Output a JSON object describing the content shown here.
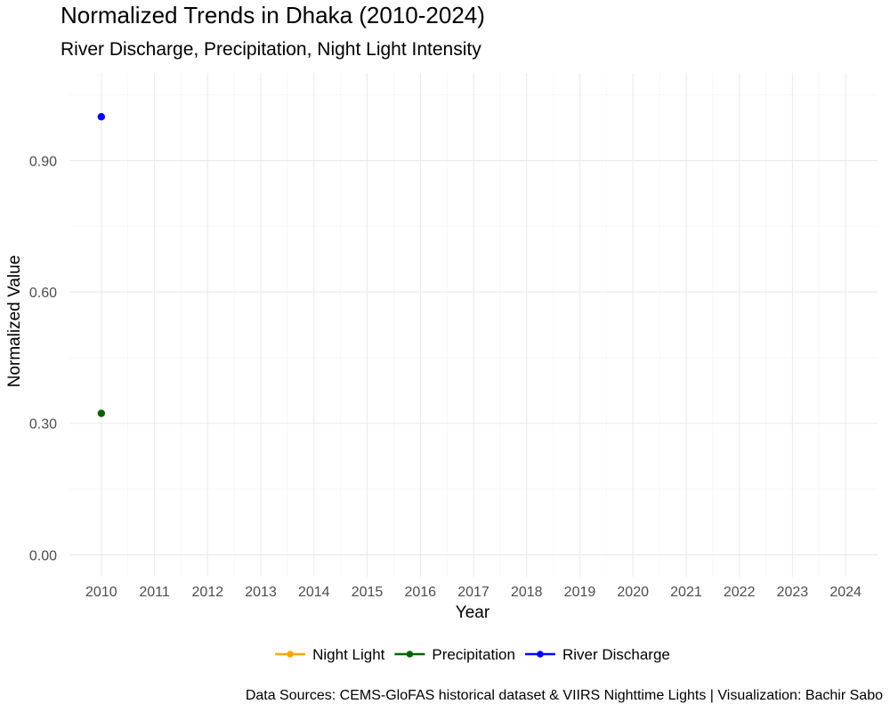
{
  "chart_data": {
    "type": "line",
    "title": "Normalized Trends in Dhaka (2010-2024)",
    "subtitle": "River Discharge, Precipitation, Night Light Intensity",
    "xlabel": "Year",
    "ylabel": "Normalized Value",
    "caption": "Data Sources: CEMS-GloFAS historical dataset & VIIRS Nighttime Lights | Visualization: Bachir Sabo",
    "categories": [
      "2010",
      "2011",
      "2012",
      "2013",
      "2014",
      "2015",
      "2016",
      "2017",
      "2018",
      "2019",
      "2020",
      "2021",
      "2022",
      "2023",
      "2024"
    ],
    "ylim": [
      -0.05,
      1.1
    ],
    "y_ticks": [
      0.0,
      0.3,
      0.6,
      0.9
    ],
    "y_tick_labels": [
      "0.00",
      "0.30",
      "0.60",
      "0.90"
    ],
    "y_minor_ticks": [
      0.15,
      0.45,
      0.75,
      1.05
    ],
    "grid": true,
    "legend_position": "bottom",
    "series": [
      {
        "name": "Night Light",
        "color": "#FFA500",
        "values": [
          null,
          null,
          null,
          null,
          null,
          null,
          null,
          null,
          null,
          null,
          null,
          null,
          null,
          null,
          null
        ]
      },
      {
        "name": "Precipitation",
        "color": "#006400",
        "values": [
          0.323,
          null,
          null,
          null,
          null,
          null,
          null,
          null,
          null,
          null,
          null,
          null,
          null,
          null,
          null
        ]
      },
      {
        "name": "River Discharge",
        "color": "#0000FF",
        "values": [
          1.0,
          null,
          null,
          null,
          null,
          null,
          null,
          null,
          null,
          null,
          null,
          null,
          null,
          null,
          null
        ]
      }
    ]
  }
}
